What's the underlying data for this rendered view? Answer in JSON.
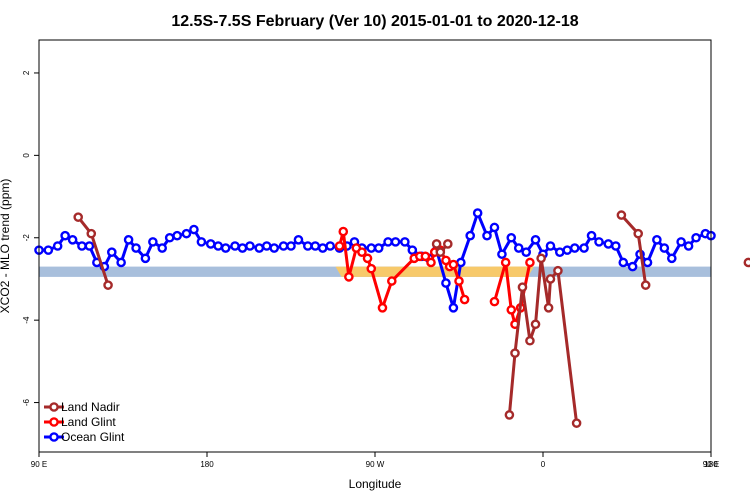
{
  "chart_data": {
    "type": "line",
    "title": "12.5S-7.5S February (Ver 10)   2015-01-01 to 2020-12-18",
    "xlabel": "Longitude",
    "ylabel": "XCO2 - MLO trend (ppm)",
    "xlim": [
      90,
      450
    ],
    "ylim": [
      -7.2,
      2.8
    ],
    "x_ticks": [
      {
        "value": 90,
        "label": "90 E"
      },
      {
        "value": 180,
        "label": "180"
      },
      {
        "value": 270,
        "label": "90 W"
      },
      {
        "value": 360,
        "label": "0"
      },
      {
        "value": 450,
        "label": "90 E"
      },
      {
        "value": 540,
        "label": "180"
      }
    ],
    "y_ticks": [
      {
        "value": 2,
        "label": "2"
      },
      {
        "value": 0,
        "label": "0"
      },
      {
        "value": -2,
        "label": "-2"
      },
      {
        "value": -4,
        "label": "-4"
      },
      {
        "value": -6,
        "label": "-6"
      }
    ],
    "band": {
      "y_min": -2.95,
      "y_max": -2.7,
      "color": "#a8bfdc"
    },
    "uncertainty_color": "#f7c96a",
    "legend_position": "bottom-left",
    "series": [
      {
        "name": "Land Nadir",
        "color": "#a52a2a",
        "x": [
          111,
          118,
          127,
          303,
          305,
          309,
          342,
          345,
          349,
          353,
          356,
          359,
          363,
          364,
          368,
          378,
          402,
          411,
          415,
          470
        ],
        "y": [
          -1.5,
          -1.9,
          -3.15,
          -2.15,
          -2.35,
          -2.15,
          -6.3,
          -4.8,
          -3.2,
          -4.5,
          -4.1,
          -2.5,
          -3.7,
          -3.0,
          -2.8,
          -6.5,
          -1.45,
          -1.9,
          -3.15,
          -2.6
        ]
      },
      {
        "name": "Land Glint",
        "color": "#ff0000",
        "x": [
          251,
          253,
          256,
          260,
          263,
          266,
          268,
          274,
          279,
          291,
          294,
          297,
          300,
          302,
          305,
          308,
          310,
          312,
          315,
          318,
          334,
          340,
          343,
          345,
          348,
          353
        ],
        "y": [
          -2.2,
          -1.85,
          -2.95,
          -2.25,
          -2.35,
          -2.5,
          -2.75,
          -3.7,
          -3.05,
          -2.5,
          -2.45,
          -2.45,
          -2.6,
          -2.35,
          -2.3,
          -2.55,
          -2.7,
          -2.65,
          -3.05,
          -3.5,
          -3.55,
          -2.6,
          -3.75,
          -4.1,
          -3.7,
          -2.6
        ]
      },
      {
        "name": "Ocean Glint",
        "color": "#0000ff",
        "x": [
          90,
          95,
          100,
          104,
          108,
          113,
          117,
          121,
          125,
          129,
          134,
          138,
          142,
          147,
          151,
          156,
          160,
          164,
          169,
          173,
          177,
          182,
          186,
          190,
          195,
          199,
          203,
          208,
          212,
          216,
          221,
          225,
          229,
          234,
          238,
          242,
          246,
          251,
          255,
          259,
          263,
          268,
          272,
          277,
          281,
          286,
          290,
          295,
          299,
          303,
          308,
          312,
          316,
          321,
          325,
          330,
          334,
          338,
          343,
          347,
          351,
          356,
          360,
          364,
          369,
          373,
          377,
          382,
          386,
          390,
          395,
          399,
          403,
          408,
          412,
          416,
          421,
          425,
          429,
          434,
          438,
          442,
          447,
          450
        ],
        "y": [
          -2.3,
          -2.3,
          -2.2,
          -1.95,
          -2.05,
          -2.2,
          -2.2,
          -2.6,
          -2.7,
          -2.35,
          -2.6,
          -2.05,
          -2.25,
          -2.5,
          -2.1,
          -2.25,
          -2.0,
          -1.95,
          -1.9,
          -1.8,
          -2.1,
          -2.15,
          -2.2,
          -2.25,
          -2.2,
          -2.25,
          -2.2,
          -2.25,
          -2.2,
          -2.25,
          -2.2,
          -2.2,
          -2.05,
          -2.2,
          -2.2,
          -2.25,
          -2.2,
          -2.25,
          -2.2,
          -2.1,
          -2.25,
          -2.25,
          -2.25,
          -2.1,
          -2.1,
          -2.1,
          -2.3,
          -2.45,
          -2.5,
          -2.3,
          -3.1,
          -3.7,
          -2.6,
          -1.95,
          -1.4,
          -1.95,
          -1.75,
          -2.4,
          -2.0,
          -2.25,
          -2.35,
          -2.05,
          -2.4,
          -2.2,
          -2.35,
          -2.3,
          -2.25,
          -2.25,
          -1.95,
          -2.1,
          -2.15,
          -2.2,
          -2.6,
          -2.7,
          -2.4,
          -2.6,
          -2.05,
          -2.25,
          -2.5,
          -2.1,
          -2.2,
          -2.0,
          -1.9,
          -1.95
        ]
      }
    ]
  }
}
